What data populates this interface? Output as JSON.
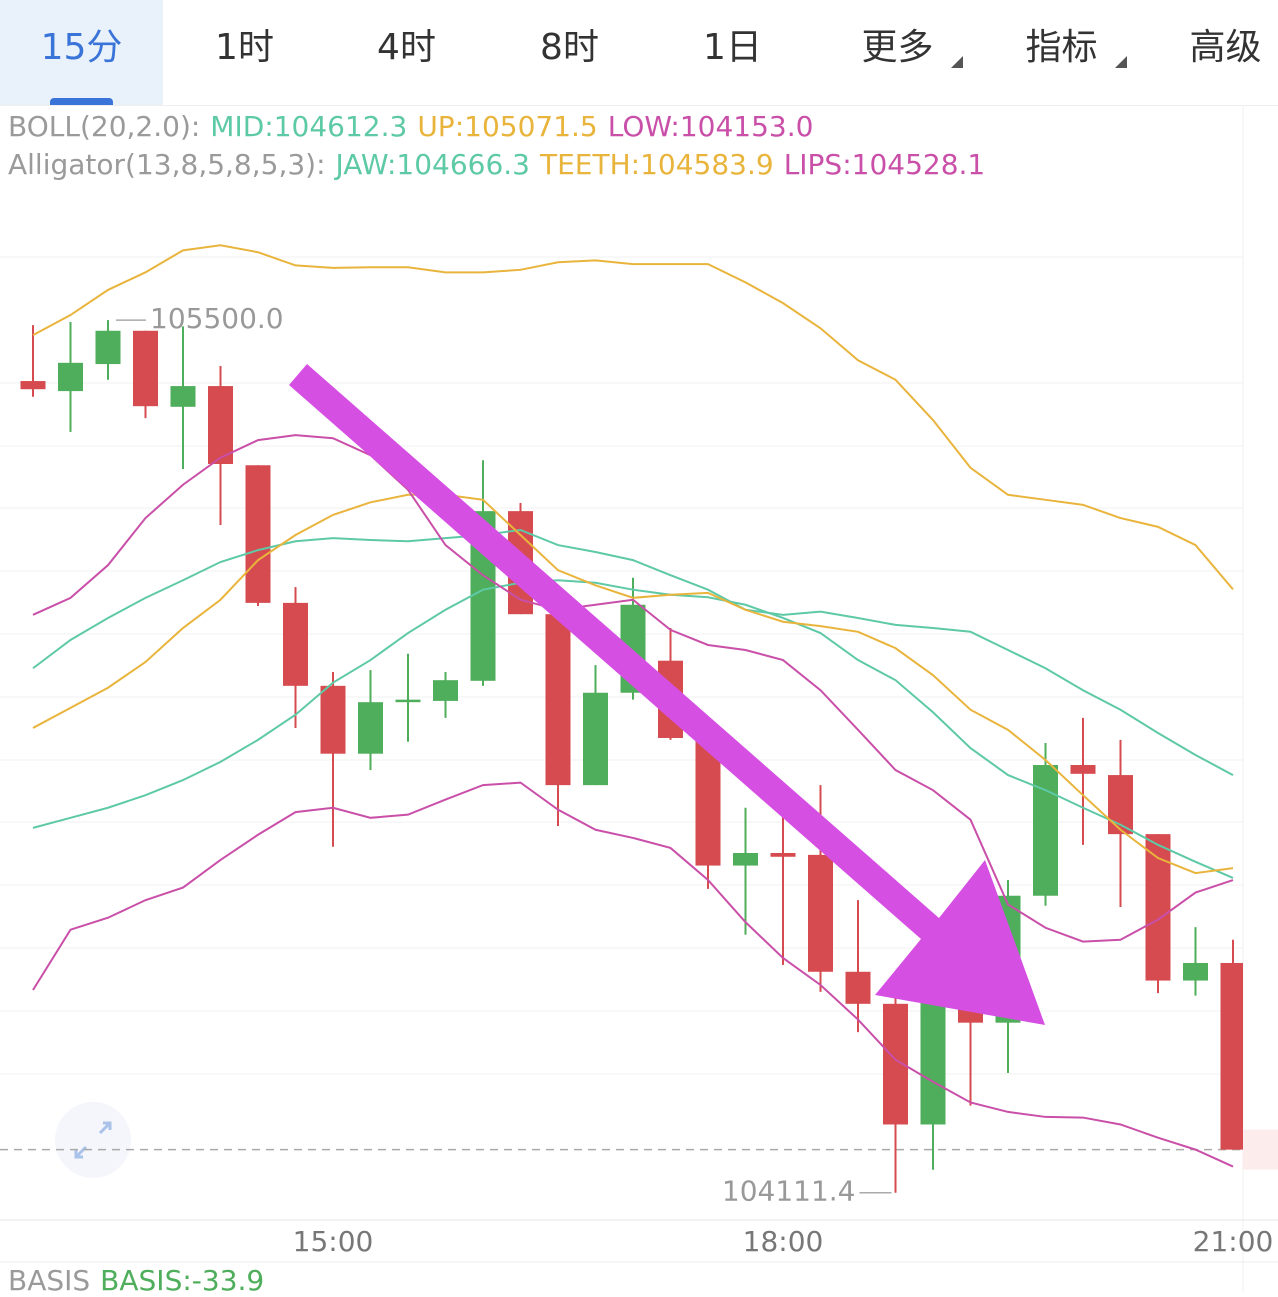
{
  "tabs": [
    "15分",
    "1时",
    "4时",
    "8时",
    "1日",
    "更多",
    "指标",
    "高级"
  ],
  "active_tab": 0,
  "chart_data": {
    "type": "candlestick",
    "categories": [
      null,
      null,
      null,
      null,
      null,
      null,
      null,
      null,
      "15:00",
      null,
      null,
      null,
      null,
      null,
      null,
      null,
      null,
      null,
      null,
      null,
      "18:00",
      null,
      null,
      null,
      null,
      null,
      null,
      null,
      null,
      null,
      null,
      null,
      "21:00"
    ],
    "open": [
      105403,
      105387,
      105430,
      105483,
      105362,
      105395,
      105269,
      105050,
      104918,
      104810,
      104892,
      104894,
      104926,
      105196,
      105032,
      104760,
      104907,
      104958,
      104835,
      104632,
      104652,
      104649,
      104463,
      104412,
      104220,
      104423,
      104382,
      104584,
      104792,
      104776,
      104682,
      104449,
      104477
    ],
    "high": [
      105492,
      105497,
      105500.0,
      105483,
      105490,
      105427,
      105269,
      105075,
      104940,
      104943,
      104969,
      104940,
      105277,
      105209,
      105032,
      104951,
      105090,
      105010,
      104835,
      104724,
      104760,
      104760,
      104577,
      104434,
      104434,
      104434,
      104609,
      104827,
      104867,
      104832,
      104682,
      104534,
      104514
    ],
    "low": [
      105378,
      105322,
      105405,
      105344,
      105263,
      105174,
      105045,
      104851,
      104662,
      104784,
      104829,
      104867,
      104918,
      105032,
      104695,
      104760,
      104896,
      104832,
      104595,
      104522,
      104474,
      104431,
      104367,
      104111.4,
      104148,
      104250,
      104302,
      104568,
      104665,
      104566,
      104429,
      104425,
      104180
    ],
    "close": [
      105390,
      105432,
      105483,
      105363,
      105395,
      105271,
      105050,
      104918,
      104810,
      104892,
      104896,
      104927,
      105196,
      105032,
      104760,
      104907,
      105047,
      104835,
      104632,
      104652,
      104646,
      104463,
      104412,
      104220,
      104423,
      104382,
      104584,
      104792,
      104778,
      104682,
      104449,
      104477,
      104180
    ],
    "up_color": "#4fae5b",
    "down_color": "#d64b4f",
    "ylim": [
      104068,
      105707
    ],
    "max_label": "105500.0",
    "min_label": "104111.4",
    "indicators": [
      {
        "label": "BOLL(20,2.0):",
        "lines": [
          {
            "label": "MID:104612.3",
            "color": "#5ec9a6",
            "values": [
              104692,
              104708,
              104724,
              104744,
              104768,
              104797,
              104832,
              104872,
              104923,
              104959,
              105002,
              105039,
              105071,
              105082,
              105086,
              105082,
              105071,
              105063,
              105059,
              105047,
              105026,
              105002,
              104959,
              104927,
              104876,
              104819,
              104776,
              104752,
              104724,
              104697,
              104665,
              104638,
              104612.3
            ]
          },
          {
            "label": "UP:105071.5",
            "color": "#e9b43c",
            "values": [
              105476,
              105508,
              105548,
              105576,
              105611,
              105619,
              105608,
              105587,
              105583,
              105584,
              105584,
              105576,
              105576,
              105580,
              105592,
              105595,
              105589,
              105589,
              105589,
              105560,
              105527,
              105487,
              105436,
              105405,
              105341,
              105265,
              105222,
              105214,
              105206,
              105185,
              105171,
              105142,
              105071.5
            ]
          },
          {
            "label": "LOW:104153.0",
            "color": "#c94fa8",
            "values": [
              104434,
              104530,
              104549,
              104577,
              104597,
              104641,
              104681,
              104717,
              104724,
              104708,
              104713,
              104737,
              104760,
              104764,
              104721,
              104689,
              104676,
              104660,
              104609,
              104542,
              104485,
              104442,
              104387,
              104323,
              104288,
              104255,
              104240,
              104232,
              104231,
              104220,
              104199,
              104180,
              104153.0
            ]
          }
        ]
      },
      {
        "label": "Alligator(13,8,5,8,5,3):",
        "lines": [
          {
            "label": "JAW:104666.3",
            "color": "#5ec9a6",
            "values": [
              104946,
              104991,
              105026,
              105058,
              105086,
              105115,
              105134,
              105148,
              105153,
              105150,
              105148,
              105153,
              105158,
              105166,
              105142,
              105131,
              105118,
              105094,
              105071,
              105039,
              105031,
              105036,
              105026,
              105015,
              105010,
              105004,
              104975,
              104946,
              104911,
              104880,
              104843,
              104808,
              104776
            ]
          },
          {
            "label": "TEETH:104583.9",
            "color": "#e9b43c",
            "values": [
              104851,
              104883,
              104915,
              104956,
              105010,
              105055,
              105118,
              105158,
              105190,
              105210,
              105222,
              105222,
              105214,
              105158,
              105102,
              105078,
              105058,
              105063,
              105066,
              105039,
              105020,
              105013,
              105004,
              104978,
              104935,
              104880,
              104848,
              104800,
              104744,
              104689,
              104644,
              104620,
              104628
            ]
          },
          {
            "label": "LIPS:104528.1",
            "color": "#c94fa8",
            "values": [
              105031,
              105058,
              105110,
              105185,
              105238,
              105281,
              105309,
              105317,
              105312,
              105285,
              105230,
              105142,
              105094,
              105055,
              105039,
              105047,
              105055,
              105007,
              104983,
              104975,
              104959,
              104911,
              104848,
              104784,
              104752,
              104705,
              104570,
              104533,
              104511,
              104514,
              104546,
              104589,
              104609
            ]
          }
        ]
      }
    ],
    "sub_indicator": {
      "label": "BASIS",
      "items": [
        {
          "label": "BASIS:-33.9",
          "color": "#4fae5b"
        }
      ]
    }
  }
}
